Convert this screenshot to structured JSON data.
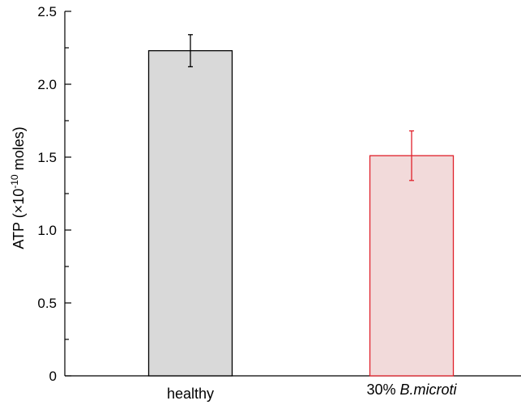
{
  "chart_data": {
    "type": "bar",
    "title": "",
    "xlabel": "",
    "ylabel": {
      "main": "ATP (",
      "times": "×",
      "base": "10",
      "exponent": "-10",
      "unit": " moles)"
    },
    "ylim": [
      0,
      2.5
    ],
    "yticks": [
      "0",
      "0.5",
      "1.0",
      "1.5",
      "2.0",
      "2.5"
    ],
    "grid": false,
    "categories": [
      {
        "prefix": "healthy",
        "italic": ""
      },
      {
        "prefix": "30% ",
        "italic": "B.microti"
      }
    ],
    "values": [
      2.23,
      1.51
    ],
    "errors": [
      0.11,
      0.17
    ],
    "colors": [
      {
        "fill": "#d9d9d9",
        "stroke": "#000000"
      },
      {
        "fill": "#f2dada",
        "stroke": "#e0212b"
      }
    ]
  }
}
